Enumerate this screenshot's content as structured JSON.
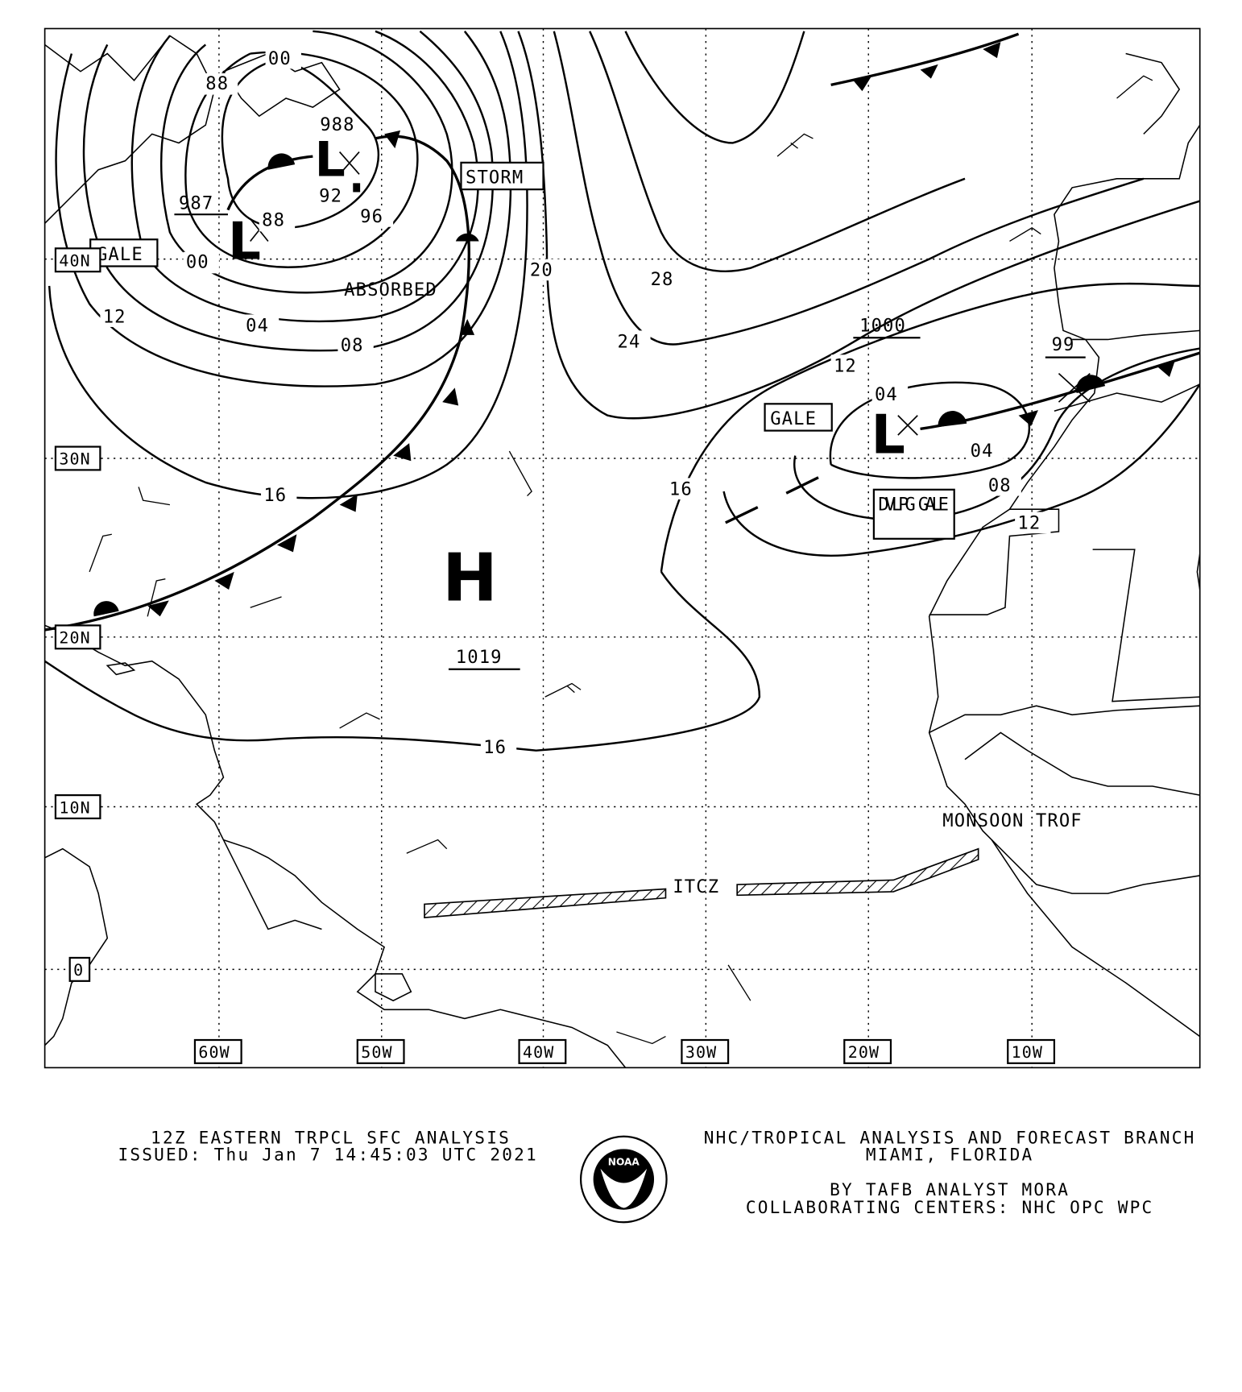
{
  "map": {
    "latitude_labels": [
      "40N",
      "30N",
      "20N",
      "10N",
      "0"
    ],
    "longitude_labels": [
      "60W",
      "50W",
      "40W",
      "30W",
      "20W",
      "10W"
    ],
    "pressure_centers": [
      {
        "type": "L",
        "value": "987"
      },
      {
        "type": "L",
        "value": "988"
      },
      {
        "type": "H",
        "value": "1019"
      },
      {
        "type": "L",
        "value": "1000"
      },
      {
        "type": "L",
        "value": "99"
      }
    ],
    "isobar_labels": [
      "00",
      "88",
      "00",
      "12",
      "04",
      "08",
      "16",
      "88",
      "92",
      "96",
      "20",
      "28",
      "24",
      "16",
      "16",
      "12",
      "04",
      "04",
      "08",
      "12"
    ],
    "warnings": [
      "GALE",
      "STORM",
      "GALE",
      "DVLPG GALE"
    ],
    "annotations": {
      "absorbed": "ABSORBED",
      "itcz": "ITCZ",
      "monsoon": "MONSOON TROF"
    }
  },
  "footer": {
    "title": "12Z EASTERN TRPCL SFC ANALYSIS",
    "issued": "ISSUED: Thu Jan 7 14:45:03 UTC 2021",
    "org": "NHC/TROPICAL ANALYSIS AND FORECAST BRANCH",
    "location": "MIAMI,  FLORIDA",
    "analyst": "BY TAFB ANALYST  MORA",
    "collab": "COLLABORATING CENTERS: NHC OPC WPC",
    "logo_text": "NOAA"
  }
}
